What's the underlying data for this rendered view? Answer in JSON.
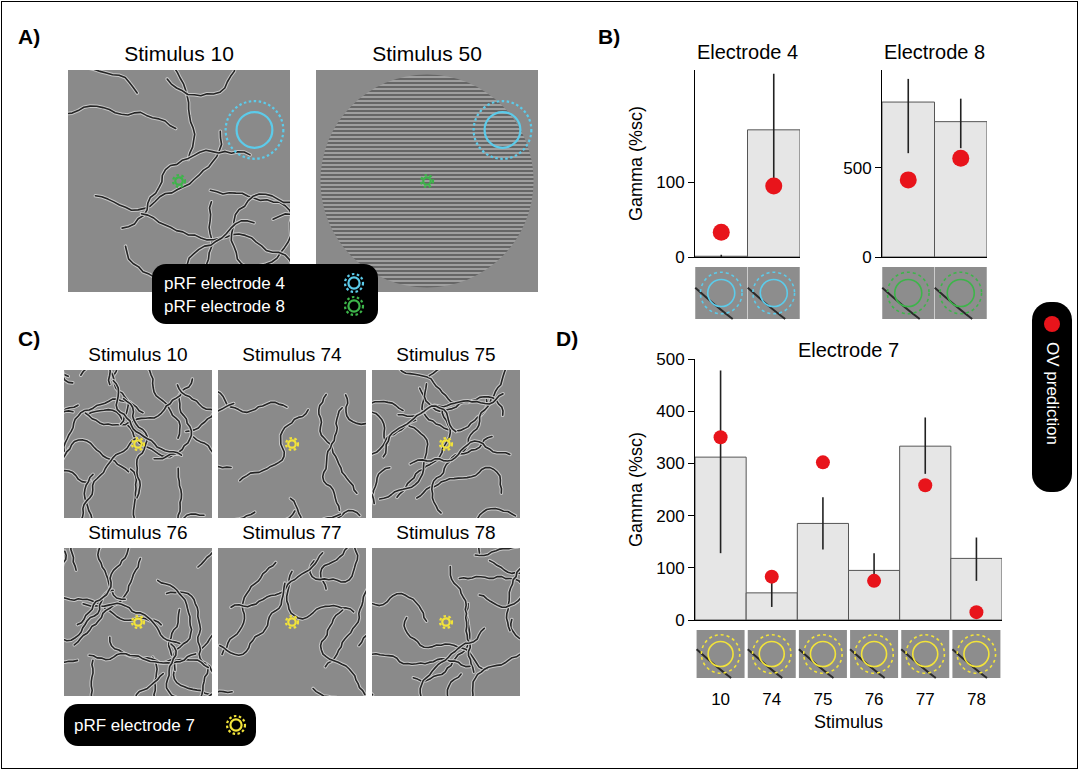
{
  "panels": [
    {
      "label": "A)",
      "stimuli": [
        {
          "title": "Stimulus 10",
          "type": "curves"
        },
        {
          "title": "Stimulus 50",
          "type": "grating"
        }
      ],
      "pRF_keys": [
        {
          "text": "pRF electrode 4",
          "color": "#5ccbea"
        },
        {
          "text": "pRF electrode 8",
          "color": "#3db54a"
        }
      ]
    },
    {
      "label": "B)"
    },
    {
      "label": "C)",
      "stimuli": [
        {
          "title": "Stimulus 10",
          "type": "curves"
        },
        {
          "title": "Stimulus 74",
          "type": "curves"
        },
        {
          "title": "Stimulus 75",
          "type": "curves"
        },
        {
          "title": "Stimulus 76",
          "type": "curves"
        },
        {
          "title": "Stimulus 77",
          "type": "curves"
        },
        {
          "title": "Stimulus 78",
          "type": "curves"
        }
      ],
      "pRF_keys": [
        {
          "text": "pRF electrode 7",
          "color": "#f2e33a"
        }
      ]
    },
    {
      "label": "D)"
    }
  ],
  "prediction_key": {
    "text": "OV prediction",
    "color": "#e8141b"
  },
  "chart_data": [
    {
      "type": "bar",
      "title": "Electrode 4",
      "y_label": "Gamma (%sc)",
      "categories": [
        null,
        null
      ],
      "values": [
        1,
        170
      ],
      "error_lower": [
        0,
        96
      ],
      "error_upper": [
        3,
        245
      ],
      "predictions": [
        33,
        95
      ],
      "color": "#e6e6e6",
      "pRF_color": "#5ccbea",
      "ylim": [
        0,
        250
      ],
      "yticks": [
        0,
        100
      ],
      "tick_labels": "y"
    },
    {
      "type": "bar",
      "title": "Electrode 8",
      "categories": [
        null,
        null
      ],
      "values": [
        870,
        760
      ],
      "error_lower": [
        583,
        611
      ],
      "error_upper": [
        1000,
        889
      ],
      "predictions": [
        433,
        555
      ],
      "color": "#e6e6e6",
      "pRF_color": "#3db54a",
      "ylim": [
        0,
        1050
      ],
      "yticks": [
        0,
        500
      ],
      "tick_labels": "y"
    },
    {
      "type": "bar",
      "title": "Electrode 7",
      "y_label": "Gamma (%sc)",
      "x_label": "Stimulus",
      "categories": [
        "10",
        "74",
        "75",
        "76",
        "77",
        "78"
      ],
      "values": [
        312,
        52,
        185,
        95,
        333,
        118
      ],
      "error_lower": [
        128,
        25,
        135,
        65,
        280,
        75
      ],
      "error_upper": [
        478,
        80,
        235,
        128,
        388,
        158
      ],
      "predictions": [
        350,
        83,
        302,
        75,
        258,
        15
      ],
      "color": "#e6e6e6",
      "pRF_color": "#f2e33a",
      "ylim": [
        0,
        500
      ],
      "yticks": [
        0,
        100,
        200,
        300,
        400,
        500
      ]
    }
  ]
}
